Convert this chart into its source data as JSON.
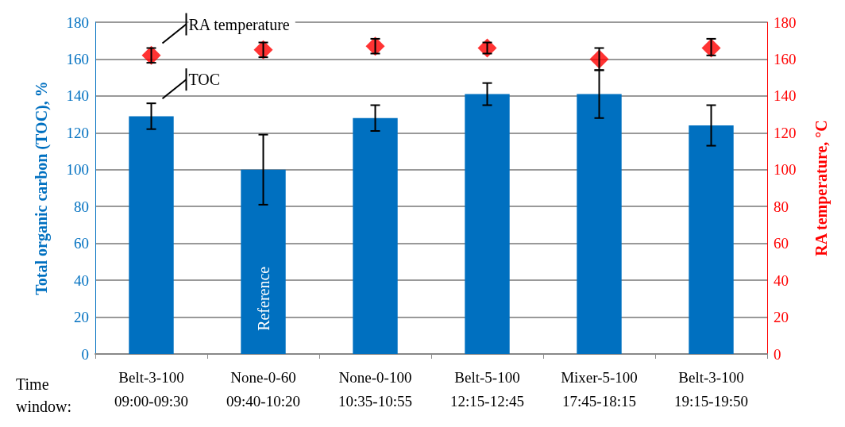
{
  "chart_data": {
    "type": "bar",
    "xlabel": null,
    "ylabel": "Total organic carbon (TOC), %",
    "y2label": "RA temperature, °C",
    "categories": [
      "Belt-3-100\n09:00-09:30",
      "None-0-60\n09:40-10:20",
      "None-0-100\n10:35-10:55",
      "Belt-5-100\n12:15-12:45",
      "Mixer-5-100\n17:45-18:15",
      "Belt-3-100\n19:15-19:50"
    ],
    "series": [
      {
        "name": "TOC",
        "color": "#0070c0",
        "values": [
          129,
          100,
          128,
          141,
          141,
          124
        ],
        "errors": [
          [
            122,
            136
          ],
          [
            81,
            119
          ],
          [
            121,
            135
          ],
          [
            135,
            147
          ],
          [
            128,
            154
          ],
          [
            113,
            135
          ]
        ]
      },
      {
        "name": "RA temperature",
        "type": "scatter",
        "axis": "y2",
        "marker": "diamond",
        "color": "#ff0000",
        "values": [
          162,
          165,
          167,
          166,
          160,
          166
        ],
        "errors": [
          [
            158,
            166
          ],
          [
            161,
            169
          ],
          [
            163,
            171
          ],
          [
            163,
            169
          ],
          [
            154,
            166
          ],
          [
            162,
            171
          ]
        ]
      }
    ],
    "ylim": [
      0,
      180
    ],
    "yticks": [
      0,
      20,
      40,
      60,
      80,
      100,
      120,
      140,
      160,
      180
    ],
    "y2lim": [
      0,
      180
    ],
    "y2ticks": [
      0,
      20,
      40,
      60,
      80,
      100,
      120,
      140,
      160,
      180
    ],
    "grid": "y",
    "legend": false,
    "annotations": [
      "Time window:",
      "Reference"
    ]
  }
}
